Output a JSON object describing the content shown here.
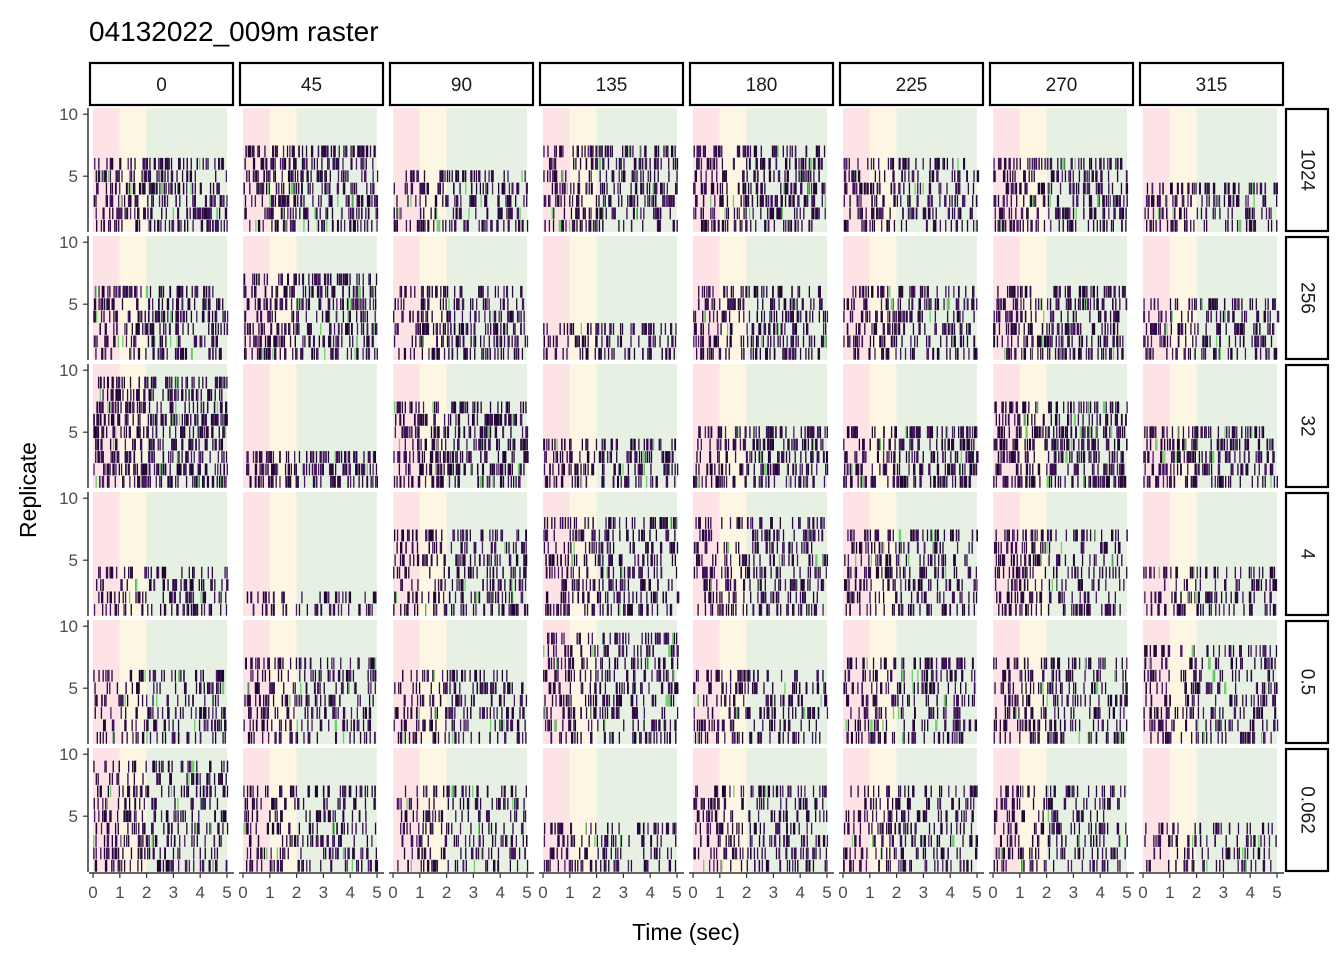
{
  "chart_data": {
    "type": "raster",
    "title": "04132022_009m raster",
    "xlabel": "Time (sec)",
    "ylabel": "Replicate",
    "xlim": [
      0,
      5
    ],
    "ylim": [
      0.5,
      10.5
    ],
    "x_ticks": [
      "0",
      "1",
      "2",
      "3",
      "4",
      "5"
    ],
    "y_ticks": [
      "5",
      "10"
    ],
    "columns": [
      "0",
      "45",
      "90",
      "135",
      "180",
      "225",
      "270",
      "315"
    ],
    "rows": [
      "1024",
      "256",
      "32",
      "4",
      "0.5",
      "0.062"
    ],
    "stimulus_bands": [
      {
        "from": 0,
        "to": 1,
        "color": "#fde3e6"
      },
      {
        "from": 1,
        "to": 2,
        "color": "#fdf6e3"
      },
      {
        "from": 2,
        "to": 5,
        "color": "#e6f1e3"
      }
    ],
    "spike_colors": [
      "#2b0a3d",
      "#3b0f5a",
      "#1a0630",
      "#4a1a63",
      "#240a33"
    ],
    "accent_color": "#6fcf6a",
    "replicates_active": [
      [
        6,
        7,
        5,
        7,
        7,
        6,
        6,
        4
      ],
      [
        6,
        7,
        6,
        3,
        6,
        6,
        6,
        5
      ],
      [
        9,
        3,
        7,
        4,
        5,
        5,
        7,
        5
      ],
      [
        4,
        2,
        7,
        8,
        8,
        7,
        7,
        4
      ],
      [
        6,
        7,
        6,
        9,
        6,
        7,
        7,
        8
      ],
      [
        9,
        7,
        7,
        4,
        7,
        7,
        7,
        4
      ]
    ],
    "spike_density": [
      [
        0.45,
        0.55,
        0.35,
        0.45,
        0.5,
        0.4,
        0.45,
        0.4
      ],
      [
        0.45,
        0.5,
        0.45,
        0.3,
        0.45,
        0.45,
        0.45,
        0.35
      ],
      [
        0.7,
        0.6,
        0.55,
        0.45,
        0.5,
        0.55,
        0.6,
        0.55
      ],
      [
        0.3,
        0.25,
        0.35,
        0.4,
        0.35,
        0.35,
        0.35,
        0.3
      ],
      [
        0.25,
        0.3,
        0.3,
        0.35,
        0.3,
        0.3,
        0.3,
        0.3
      ],
      [
        0.3,
        0.25,
        0.25,
        0.25,
        0.3,
        0.25,
        0.25,
        0.2
      ]
    ]
  }
}
